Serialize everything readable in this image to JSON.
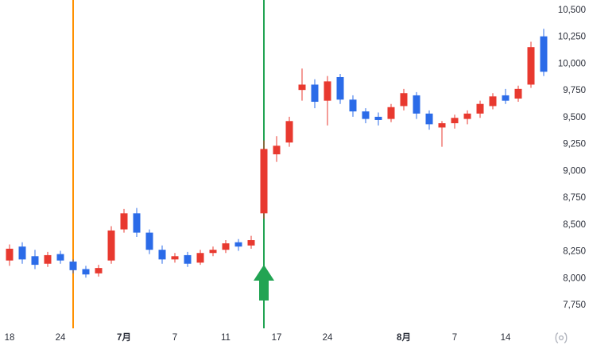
{
  "chart_data": {
    "type": "candlestick",
    "title": "",
    "xlabel": "",
    "ylabel": "",
    "grid": false,
    "legend_position": "none",
    "background": "#ffffff",
    "text_color": "#2a2e39",
    "up_color": "#e8392f",
    "down_color": "#2b6be8",
    "candles_ohlc": [
      [
        8160,
        8310,
        8110,
        8270
      ],
      [
        8290,
        8330,
        8130,
        8170
      ],
      [
        8200,
        8260,
        8080,
        8120
      ],
      [
        8130,
        8240,
        8100,
        8210
      ],
      [
        8220,
        8250,
        8130,
        8160
      ],
      [
        8150,
        8170,
        8040,
        8070
      ],
      [
        8080,
        8110,
        8000,
        8030
      ],
      [
        8040,
        8120,
        8010,
        8090
      ],
      [
        8160,
        8480,
        8130,
        8440
      ],
      [
        8450,
        8640,
        8420,
        8600
      ],
      [
        8600,
        8650,
        8380,
        8420
      ],
      [
        8420,
        8450,
        8220,
        8260
      ],
      [
        8260,
        8300,
        8130,
        8170
      ],
      [
        8170,
        8230,
        8140,
        8200
      ],
      [
        8210,
        8240,
        8100,
        8130
      ],
      [
        8140,
        8260,
        8120,
        8230
      ],
      [
        8230,
        8290,
        8200,
        8260
      ],
      [
        8260,
        8350,
        8230,
        8320
      ],
      [
        8330,
        8360,
        8250,
        8290
      ],
      [
        8300,
        8390,
        8270,
        8350
      ],
      [
        8600,
        9280,
        8550,
        9200
      ],
      [
        9150,
        9320,
        9080,
        9230
      ],
      [
        9260,
        9500,
        9220,
        9460
      ],
      [
        9750,
        9950,
        9650,
        9800
      ],
      [
        9800,
        9850,
        9580,
        9640
      ],
      [
        9650,
        9880,
        9420,
        9830
      ],
      [
        9870,
        9900,
        9620,
        9660
      ],
      [
        9660,
        9700,
        9500,
        9550
      ],
      [
        9550,
        9580,
        9440,
        9480
      ],
      [
        9500,
        9540,
        9420,
        9470
      ],
      [
        9480,
        9620,
        9450,
        9590
      ],
      [
        9600,
        9760,
        9560,
        9720
      ],
      [
        9700,
        9730,
        9480,
        9530
      ],
      [
        9530,
        9560,
        9380,
        9430
      ],
      [
        9400,
        9460,
        9220,
        9440
      ],
      [
        9440,
        9520,
        9390,
        9490
      ],
      [
        9480,
        9560,
        9430,
        9530
      ],
      [
        9530,
        9650,
        9490,
        9620
      ],
      [
        9600,
        9720,
        9570,
        9690
      ],
      [
        9700,
        9760,
        9620,
        9650
      ],
      [
        9670,
        9790,
        9640,
        9760
      ],
      [
        9800,
        10200,
        9770,
        10150
      ],
      [
        10250,
        10320,
        9880,
        9920
      ]
    ],
    "x_ticks": [
      {
        "index": 0,
        "label": "18",
        "bold": false
      },
      {
        "index": 4,
        "label": "24",
        "bold": false
      },
      {
        "index": 9,
        "label": "7月",
        "bold": true
      },
      {
        "index": 13,
        "label": "7",
        "bold": false
      },
      {
        "index": 17,
        "label": "11",
        "bold": false
      },
      {
        "index": 21,
        "label": "17",
        "bold": false
      },
      {
        "index": 25,
        "label": "24",
        "bold": false
      },
      {
        "index": 31,
        "label": "8月",
        "bold": true
      },
      {
        "index": 35,
        "label": "7",
        "bold": false
      },
      {
        "index": 39,
        "label": "14",
        "bold": false
      }
    ],
    "y_axis": {
      "min": 7750,
      "max": 10500,
      "step": 250,
      "tick_labels": [
        "10,500",
        "10,250",
        "10,000",
        "9,750",
        "9,500",
        "9,250",
        "9,000",
        "8,750",
        "8,500",
        "8,250",
        "8,000",
        "7,750"
      ]
    },
    "annotations": {
      "vlines": [
        {
          "index": 5,
          "color": "#ff9100",
          "name": "orange-marker-line"
        },
        {
          "index": 20,
          "color": "#22a453",
          "name": "green-marker-line"
        }
      ],
      "up_arrow": {
        "index": 20,
        "color": "#22a453"
      }
    }
  }
}
